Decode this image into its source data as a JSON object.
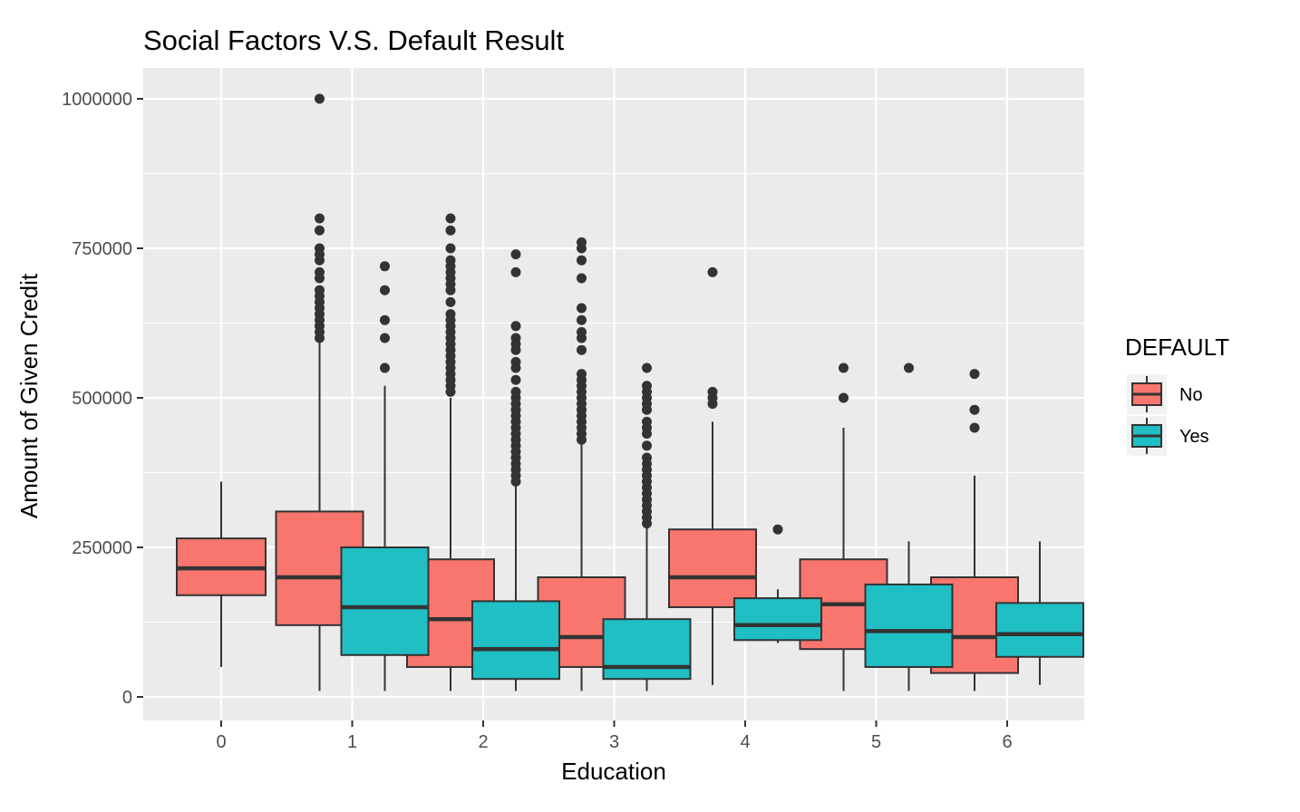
{
  "chart_data": {
    "type": "boxplot",
    "title": "Social Factors V.S. Default Result",
    "xlabel": "Education",
    "ylabel": "Amount of Given Credit",
    "categories": [
      "0",
      "1",
      "2",
      "3",
      "4",
      "5",
      "6"
    ],
    "y_ticks": [
      0,
      250000,
      500000,
      750000,
      1000000
    ],
    "y_tick_labels": [
      "0",
      "250000",
      "500000",
      "750000",
      "1000000"
    ],
    "ylim": [
      -35000,
      1050000
    ],
    "grid": true,
    "legend": {
      "title": "DEFAULT",
      "position": "right",
      "entries": [
        {
          "label": "No",
          "color": "#F8766D"
        },
        {
          "label": "Yes",
          "color": "#00BFC4"
        }
      ]
    },
    "colors": {
      "panel": "#EBEBEB",
      "grid": "#FFFFFF",
      "outline": "#333333",
      "no": "#F8766D",
      "yes": "#1FBFC4"
    },
    "series": [
      {
        "name": "No",
        "boxes": [
          {
            "category": "0",
            "min": 50000,
            "q1": 170000,
            "median": 215000,
            "q3": 265000,
            "max": 360000,
            "outliers": []
          },
          {
            "category": "1",
            "min": 10000,
            "q1": 120000,
            "median": 200000,
            "q3": 310000,
            "max": 600000,
            "outliers": [
              1000000,
              800000,
              780000,
              750000,
              740000,
              730000,
              710000,
              700000,
              680000,
              670000,
              660000,
              650000,
              640000,
              630000,
              620000,
              610000,
              600000
            ]
          },
          {
            "category": "2",
            "min": 10000,
            "q1": 50000,
            "median": 130000,
            "q3": 230000,
            "max": 500000,
            "outliers": [
              800000,
              780000,
              750000,
              730000,
              720000,
              710000,
              700000,
              690000,
              680000,
              660000,
              640000,
              630000,
              620000,
              610000,
              600000,
              590000,
              580000,
              570000,
              560000,
              550000,
              540000,
              530000,
              520000,
              510000
            ]
          },
          {
            "category": "3",
            "min": 10000,
            "q1": 50000,
            "median": 100000,
            "q3": 200000,
            "max": 430000,
            "outliers": [
              760000,
              750000,
              730000,
              700000,
              650000,
              630000,
              610000,
              600000,
              580000,
              540000,
              530000,
              520000,
              510000,
              500000,
              490000,
              480000,
              470000,
              460000,
              450000,
              440000,
              430000
            ]
          },
          {
            "category": "4",
            "min": 20000,
            "q1": 150000,
            "median": 200000,
            "q3": 280000,
            "max": 460000,
            "outliers": [
              710000,
              510000,
              500000,
              490000
            ]
          },
          {
            "category": "5",
            "min": 10000,
            "q1": 80000,
            "median": 155000,
            "q3": 230000,
            "max": 450000,
            "outliers": [
              550000,
              500000
            ]
          },
          {
            "category": "6",
            "min": 10000,
            "q1": 40000,
            "median": 100000,
            "q3": 200000,
            "max": 370000,
            "outliers": [
              540000,
              480000,
              450000
            ]
          }
        ]
      },
      {
        "name": "Yes",
        "boxes": [
          {
            "category": "1",
            "min": 10000,
            "q1": 70000,
            "median": 150000,
            "q3": 250000,
            "max": 520000,
            "outliers": [
              720000,
              680000,
              630000,
              600000,
              550000
            ]
          },
          {
            "category": "2",
            "min": 10000,
            "q1": 30000,
            "median": 80000,
            "q3": 160000,
            "max": 360000,
            "outliers": [
              740000,
              710000,
              620000,
              600000,
              590000,
              580000,
              560000,
              550000,
              530000,
              510000,
              500000,
              490000,
              480000,
              470000,
              460000,
              450000,
              440000,
              430000,
              420000,
              410000,
              400000,
              390000,
              380000,
              370000,
              360000
            ]
          },
          {
            "category": "3",
            "min": 10000,
            "q1": 30000,
            "median": 50000,
            "q3": 130000,
            "max": 290000,
            "outliers": [
              550000,
              520000,
              510000,
              500000,
              490000,
              480000,
              460000,
              450000,
              440000,
              420000,
              400000,
              390000,
              380000,
              370000,
              360000,
              350000,
              340000,
              330000,
              320000,
              310000,
              300000,
              290000
            ]
          },
          {
            "category": "4",
            "min": 90000,
            "q1": 95000,
            "median": 120000,
            "q3": 165000,
            "max": 180000,
            "outliers": [
              280000
            ]
          },
          {
            "category": "5",
            "min": 10000,
            "q1": 50000,
            "median": 110000,
            "q3": 188000,
            "max": 260000,
            "outliers": [
              550000
            ]
          },
          {
            "category": "6",
            "min": 20000,
            "q1": 67000,
            "median": 105000,
            "q3": 157000,
            "max": 260000,
            "outliers": []
          }
        ]
      }
    ]
  }
}
